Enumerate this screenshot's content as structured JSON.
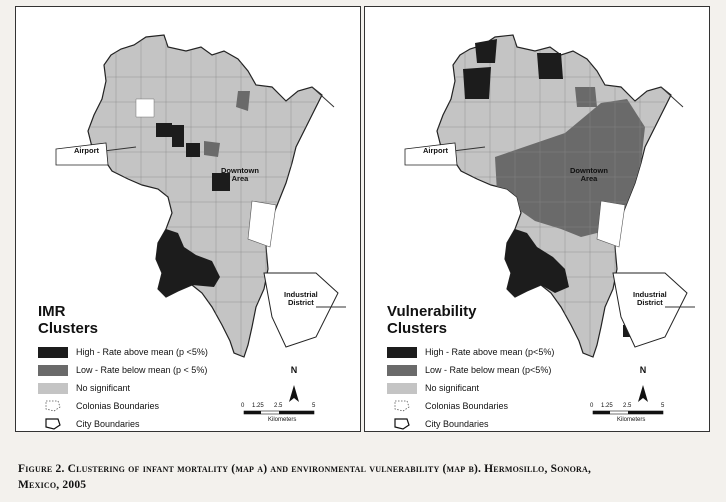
{
  "maps": [
    {
      "title_line1": "IMR",
      "title_line2": "Clusters",
      "legend": [
        {
          "label": "High - Rate above mean (p <5%)",
          "color": "#1c1c1c"
        },
        {
          "label": "Low - Rate below mean (p < 5%)",
          "color": "#6a6a6a"
        },
        {
          "label": "No significant",
          "color": "#c4c4c4"
        },
        {
          "label": "Colonias Boundaries",
          "icon": "dotted-outline-icon"
        },
        {
          "label": "City Boundaries",
          "icon": "outline-icon"
        }
      ],
      "places": {
        "airport": "Airport",
        "downtown1": "Downtown",
        "downtown2": "Area",
        "industrial1": "Industrial",
        "industrial2": "District"
      },
      "north": "N",
      "scale": {
        "ticks": [
          "0",
          "1.25",
          "2.5",
          "5"
        ],
        "unit": "Kilometers"
      }
    },
    {
      "title_line1": "Vulnerability",
      "title_line2": "Clusters",
      "legend": [
        {
          "label": "High - Rate above mean (p<5%)",
          "color": "#1c1c1c"
        },
        {
          "label": "Low - Rate below mean (p<5%)",
          "color": "#6a6a6a"
        },
        {
          "label": "No significant",
          "color": "#c4c4c4"
        },
        {
          "label": "Colonias Boundaries",
          "icon": "dotted-outline-icon"
        },
        {
          "label": "City Boundaries",
          "icon": "outline-icon"
        }
      ],
      "places": {
        "airport": "Airport",
        "downtown1": "Downtown",
        "downtown2": "Area",
        "industrial1": "Industrial",
        "industrial2": "District"
      },
      "north": "N",
      "scale": {
        "ticks": [
          "0",
          "1.25",
          "2.5",
          "5"
        ],
        "unit": "Kilometers"
      }
    }
  ],
  "caption_line1": "Figure 2. Clustering of infant mortality (map a) and environmental vulnerability (map b). Hermosillo, Sonora,",
  "caption_line2": "Mexico, 2005"
}
